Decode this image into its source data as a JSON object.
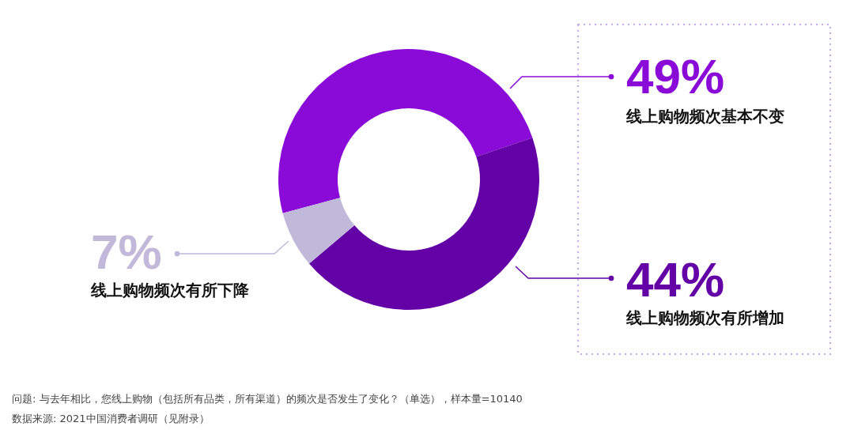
{
  "chart_data": {
    "type": "donut",
    "categories": [
      "线上购物频次基本不变",
      "线上购物频次有所增加",
      "线上购物频次有所下降"
    ],
    "values": [
      49,
      44,
      7
    ],
    "colors": [
      "#8a0ad8",
      "#6300a6",
      "#c0b9d9"
    ],
    "value_labels": [
      "49%",
      "44%",
      "7%"
    ],
    "annotations": [
      "问题: 与去年相比，您线上购物（包括所有品类，所有渠道）的频次是否发生了变化？（单选），样本量=10140",
      "数据来源: 2021中国消费者调研（见附录）"
    ]
  }
}
